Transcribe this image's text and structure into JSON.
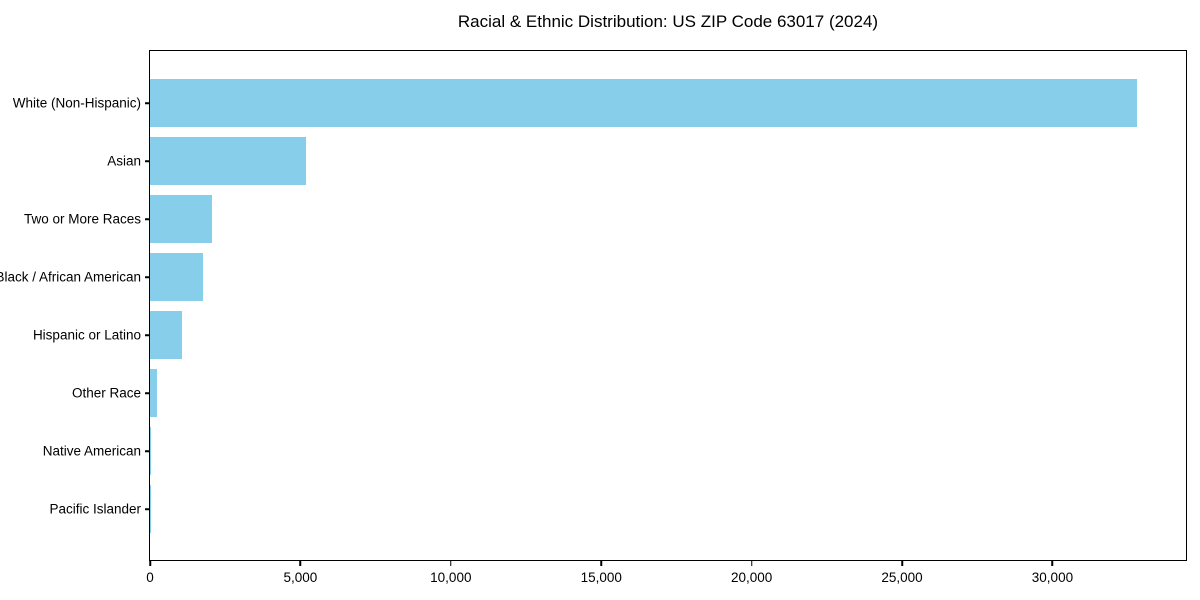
{
  "chart_data": {
    "type": "bar",
    "orientation": "horizontal",
    "title": "Racial & Ethnic Distribution: US ZIP Code 63017 (2024)",
    "categories": [
      "White (Non-Hispanic)",
      "Asian",
      "Two or More Races",
      "Black / African American",
      "Hispanic or Latino",
      "Other Race",
      "Native American",
      "Pacific Islander"
    ],
    "values": [
      32800,
      5200,
      2050,
      1750,
      1050,
      220,
      35,
      15
    ],
    "xlabel": "",
    "ylabel": "",
    "xlim": [
      0,
      34440
    ],
    "x_ticks": [
      0,
      5000,
      10000,
      15000,
      20000,
      25000,
      30000
    ],
    "x_tick_labels": [
      "0",
      "5,000",
      "10,000",
      "15,000",
      "20,000",
      "25,000",
      "30,000"
    ],
    "bar_color": "#87ceeb",
    "axis_color": "#000000",
    "background_color": "#ffffff",
    "grid": false,
    "legend": false
  }
}
